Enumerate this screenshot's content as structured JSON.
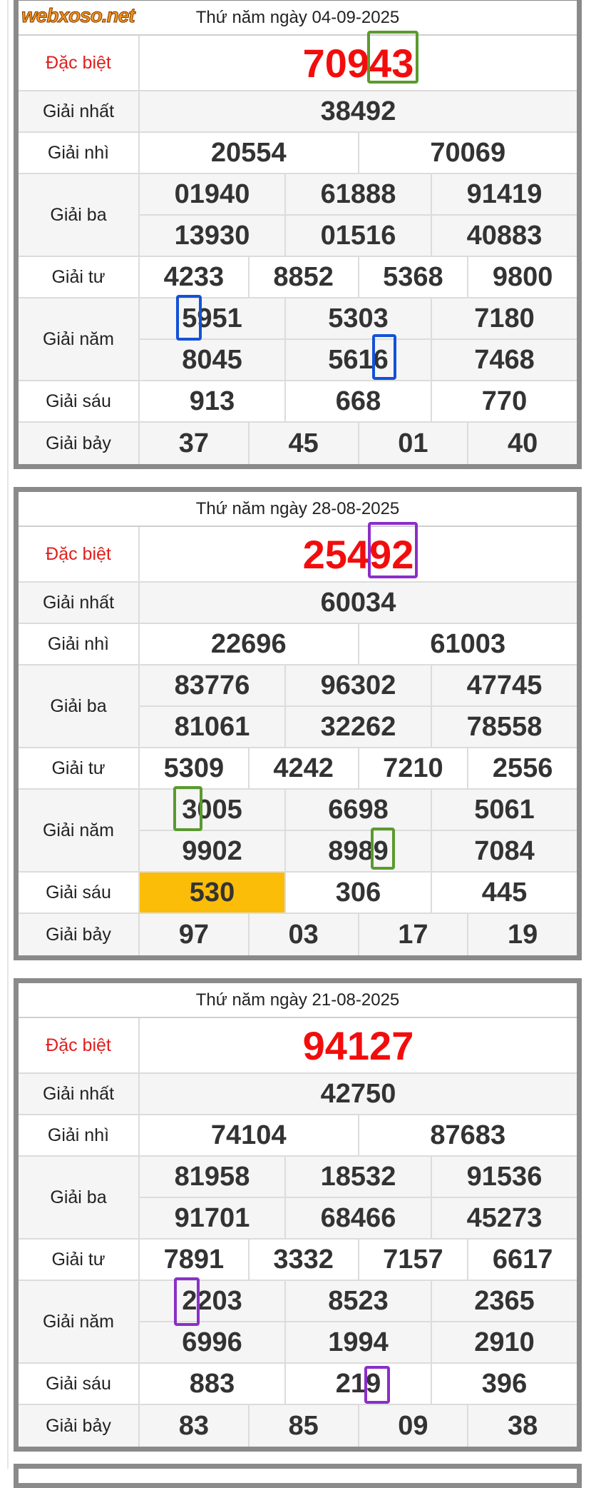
{
  "watermark": "webxoso.net",
  "labels": {
    "special": "Đặc biệt",
    "first": "Giải nhất",
    "second": "Giải nhì",
    "third": "Giải ba",
    "fourth": "Giải tư",
    "fifth": "Giải năm",
    "sixth": "Giải sáu",
    "seventh": "Giải bảy"
  },
  "colors": {
    "special": "#f20d0d",
    "highlight": "#fbbd08",
    "mark_green": "#5a9a2e",
    "mark_blue": "#1451d6",
    "mark_purple": "#8a2fc9"
  },
  "draws": [
    {
      "date": "Thứ năm ngày 04-09-2025",
      "special": [
        "70943"
      ],
      "first": [
        "38492"
      ],
      "second": [
        "20554",
        "70069"
      ],
      "third": [
        "01940",
        "61888",
        "91419",
        "13930",
        "01516",
        "40883"
      ],
      "fourth": [
        "4233",
        "8852",
        "5368",
        "9800"
      ],
      "fifth": [
        "5951",
        "5303",
        "7180",
        "8045",
        "5616",
        "7468"
      ],
      "sixth": [
        "913",
        "668",
        "770"
      ],
      "seventh": [
        "37",
        "45",
        "01",
        "40"
      ]
    },
    {
      "date": "Thứ năm ngày 28-08-2025",
      "special": [
        "25492"
      ],
      "first": [
        "60034"
      ],
      "second": [
        "22696",
        "61003"
      ],
      "third": [
        "83776",
        "96302",
        "47745",
        "81061",
        "32262",
        "78558"
      ],
      "fourth": [
        "5309",
        "4242",
        "7210",
        "2556"
      ],
      "fifth": [
        "3005",
        "6698",
        "5061",
        "9902",
        "8989",
        "7084"
      ],
      "sixth": [
        "530",
        "306",
        "445"
      ],
      "seventh": [
        "97",
        "03",
        "17",
        "19"
      ],
      "highlighted": "530"
    },
    {
      "date": "Thứ năm ngày 21-08-2025",
      "special": [
        "94127"
      ],
      "first": [
        "42750"
      ],
      "second": [
        "74104",
        "87683"
      ],
      "third": [
        "81958",
        "18532",
        "91536",
        "91701",
        "68466",
        "45273"
      ],
      "fourth": [
        "7891",
        "3332",
        "7157",
        "6617"
      ],
      "fifth": [
        "2203",
        "8523",
        "2365",
        "6996",
        "1994",
        "2910"
      ],
      "sixth": [
        "883",
        "219",
        "396"
      ],
      "seventh": [
        "83",
        "85",
        "09",
        "38"
      ]
    }
  ]
}
